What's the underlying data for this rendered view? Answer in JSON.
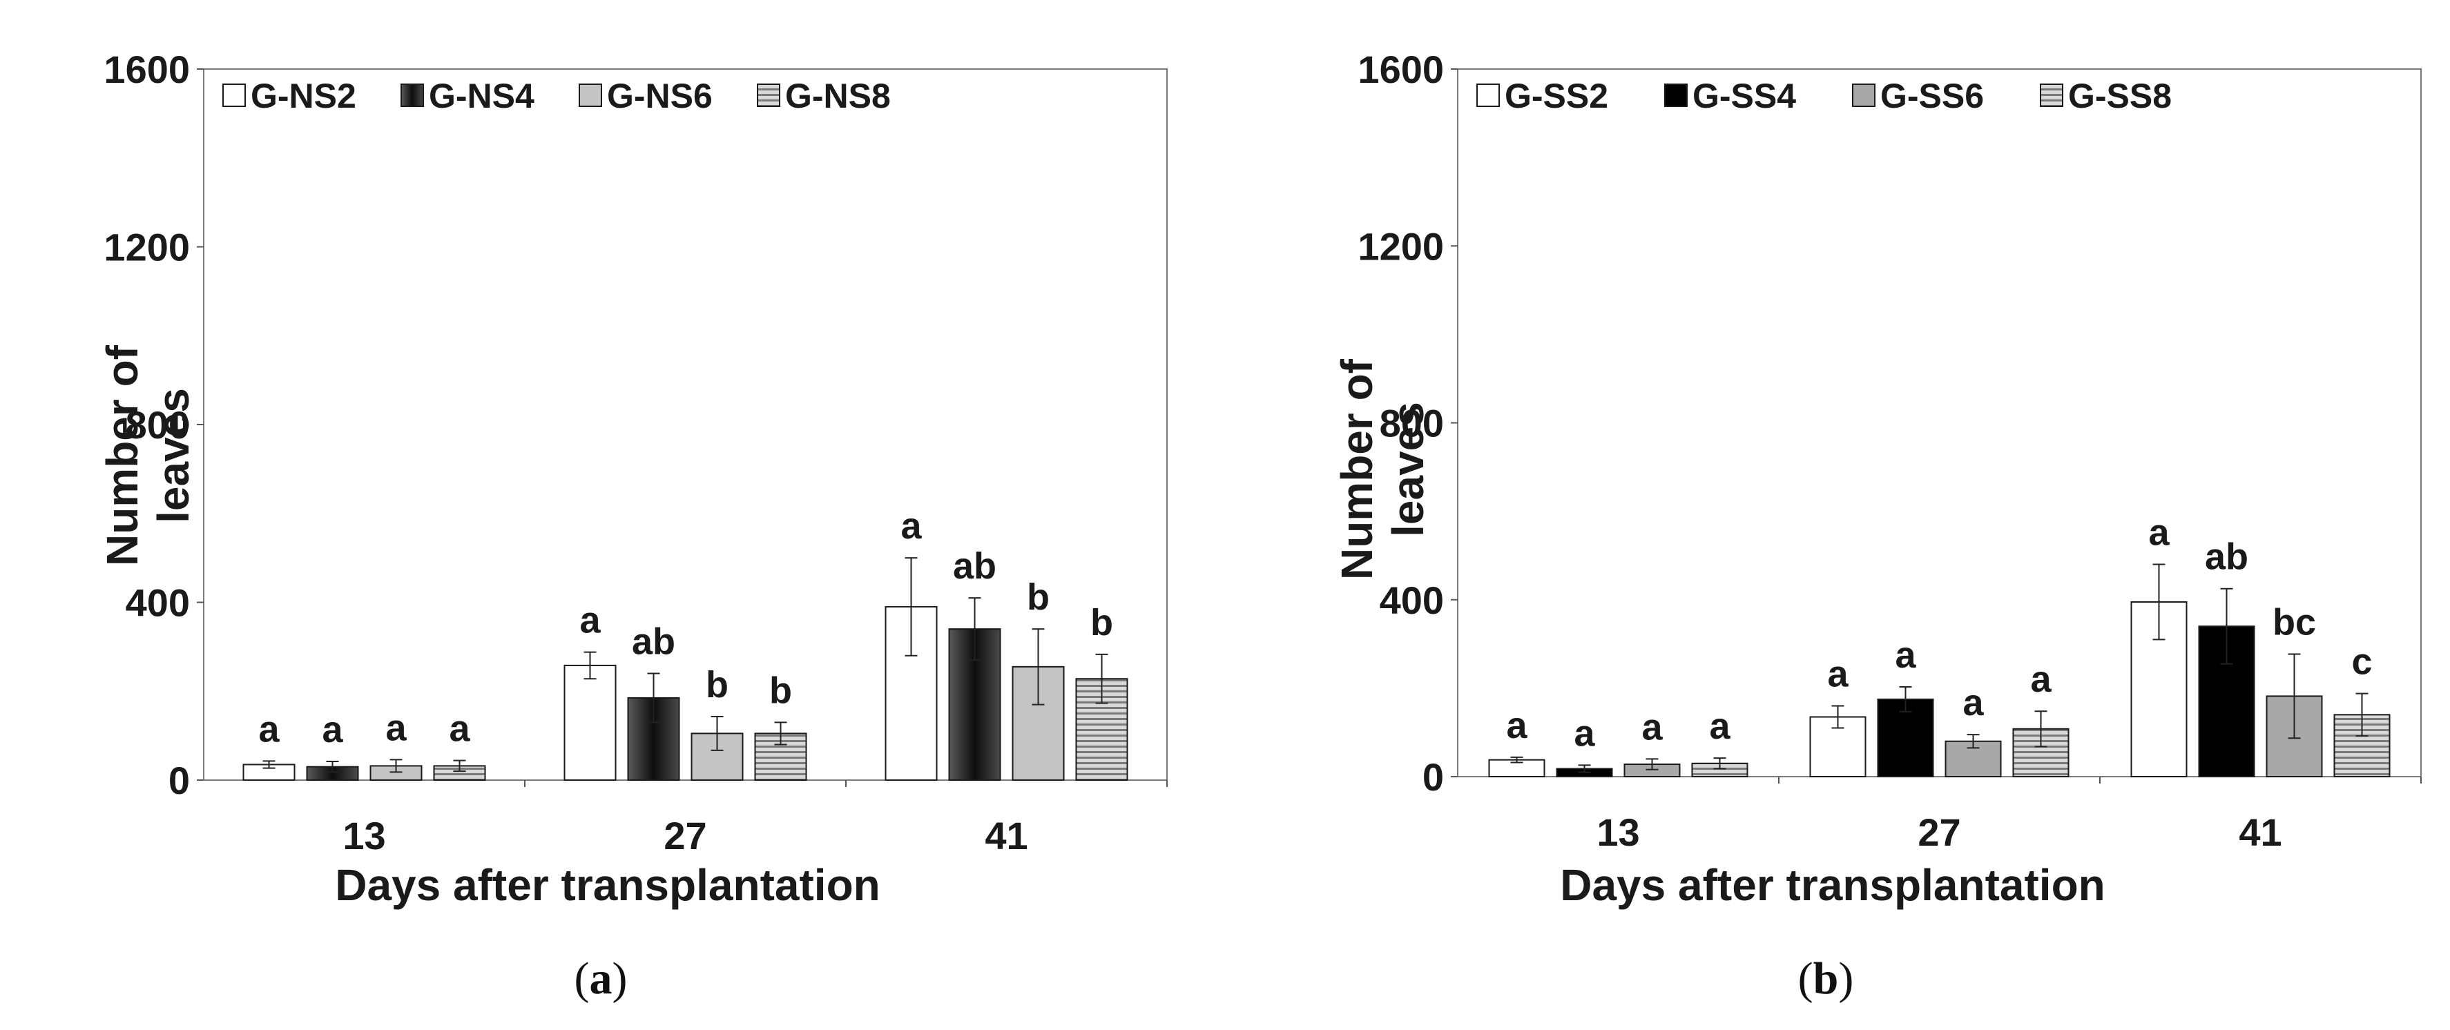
{
  "chart_data": [
    {
      "type": "bar",
      "panel_label": "a",
      "title": "",
      "xlabel": "Days after transplantation",
      "ylabel": "Number of leaves",
      "ylim": [
        0,
        1600
      ],
      "yticks": [
        "0",
        "400",
        "800",
        "1200",
        "1600"
      ],
      "categories": [
        "13",
        "27",
        "41"
      ],
      "legend_position": "top-left",
      "series": [
        {
          "name": "G-NS2",
          "fill": "#ffffff",
          "pattern": "none",
          "values": [
            35,
            258,
            390
          ],
          "errors": [
            8,
            30,
            110
          ],
          "letters": [
            "a",
            "a",
            "a"
          ]
        },
        {
          "name": "G-NS4",
          "fill": "#1f1f1f",
          "pattern": "dark-gradient",
          "values": [
            30,
            185,
            340
          ],
          "errors": [
            12,
            55,
            70
          ],
          "letters": [
            "a",
            "ab",
            "ab"
          ]
        },
        {
          "name": "G-NS6",
          "fill": "#c4c4c4",
          "pattern": "none",
          "values": [
            32,
            105,
            255
          ],
          "errors": [
            14,
            38,
            85
          ],
          "letters": [
            "a",
            "b",
            "b"
          ]
        },
        {
          "name": "G-NS8",
          "fill": "#b8b8b8",
          "pattern": "horizontal-stripes",
          "values": [
            32,
            105,
            228
          ],
          "errors": [
            12,
            25,
            55
          ],
          "letters": [
            "a",
            "b",
            "b"
          ]
        }
      ]
    },
    {
      "type": "bar",
      "panel_label": "b",
      "title": "",
      "xlabel": "Days after transplantation",
      "ylabel": "Number of leaves",
      "ylim": [
        0,
        1600
      ],
      "yticks": [
        "0",
        "400",
        "800",
        "1200",
        "1600"
      ],
      "categories": [
        "13",
        "27",
        "41"
      ],
      "legend_position": "top-left",
      "series": [
        {
          "name": "G-SS2",
          "fill": "#ffffff",
          "pattern": "none",
          "values": [
            38,
            135,
            395
          ],
          "errors": [
            6,
            25,
            85
          ],
          "letters": [
            "a",
            "a",
            "a"
          ]
        },
        {
          "name": "G-SS4",
          "fill": "#000000",
          "pattern": "none",
          "values": [
            18,
            175,
            340
          ],
          "errors": [
            8,
            28,
            85
          ],
          "letters": [
            "a",
            "a",
            "ab"
          ]
        },
        {
          "name": "G-SS6",
          "fill": "#a8a8a8",
          "pattern": "none",
          "values": [
            28,
            80,
            182
          ],
          "errors": [
            12,
            15,
            95
          ],
          "letters": [
            "a",
            "a",
            "bc"
          ]
        },
        {
          "name": "G-SS8",
          "fill": "#8c8c8c",
          "pattern": "horizontal-stripes",
          "values": [
            30,
            108,
            140
          ],
          "errors": [
            12,
            40,
            48
          ],
          "letters": [
            "a",
            "a",
            "c"
          ]
        }
      ]
    }
  ]
}
